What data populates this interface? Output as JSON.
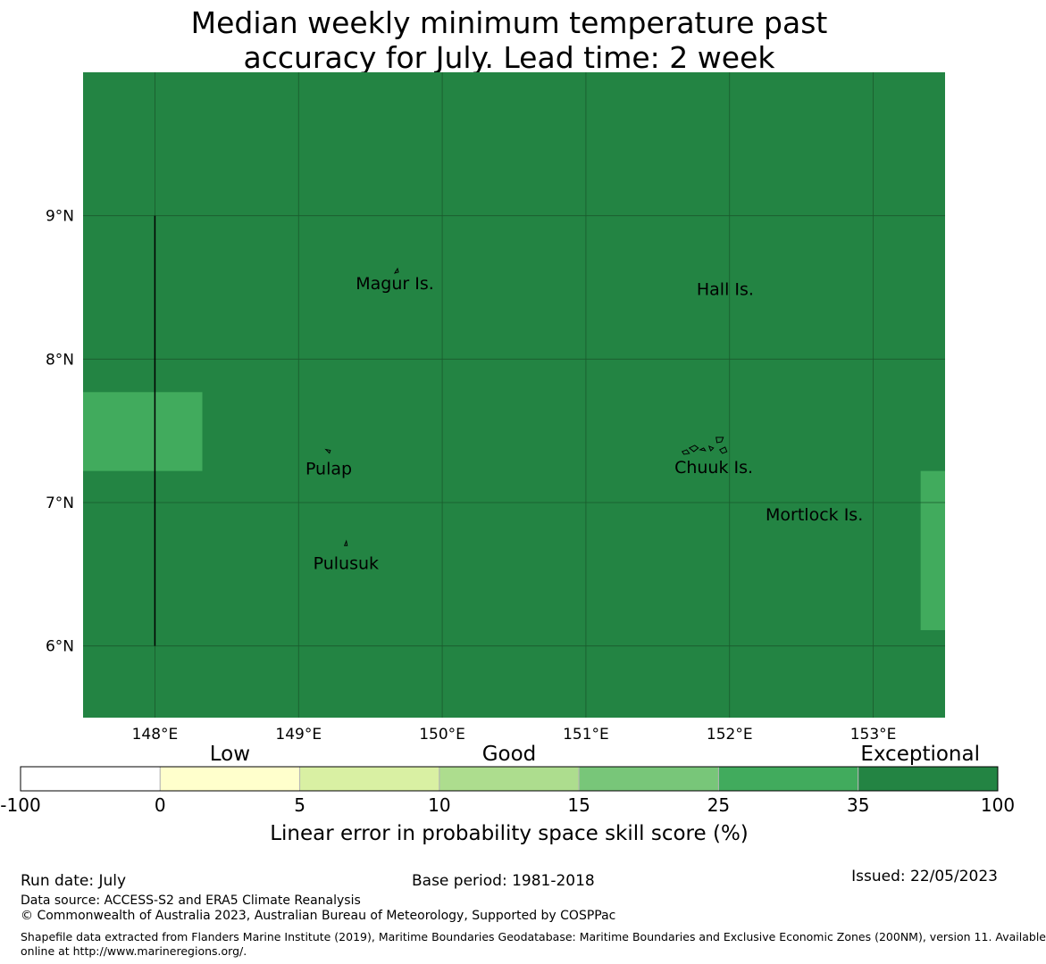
{
  "title_lines": [
    "Median weekly minimum temperature past",
    "accuracy for July. Lead time: 2 week"
  ],
  "map": {
    "lon_range": [
      147.5,
      153.5
    ],
    "lat_range": [
      5.5,
      10.0
    ],
    "lon_ticks": [
      {
        "value": 148,
        "label": "148°E"
      },
      {
        "value": 149,
        "label": "149°E"
      },
      {
        "value": 150,
        "label": "150°E"
      },
      {
        "value": 151,
        "label": "151°E"
      },
      {
        "value": 152,
        "label": "152°E"
      },
      {
        "value": 153,
        "label": "153°E"
      }
    ],
    "lat_ticks": [
      {
        "value": 9,
        "label": "9°N"
      },
      {
        "value": 8,
        "label": "8°N"
      },
      {
        "value": 7,
        "label": "7°N"
      },
      {
        "value": 6,
        "label": "6°N"
      }
    ],
    "background_category_color": "#238443",
    "grid_color": "#1a5a2c",
    "cells": [
      {
        "lon_min": 147.5,
        "lon_max": 148.33,
        "lat_min": 7.22,
        "lat_max": 7.77,
        "color": "#41ab5d"
      },
      {
        "lon_min": 153.33,
        "lon_max": 153.5,
        "lat_min": 6.11,
        "lat_max": 7.22,
        "color": "#41ab5d"
      }
    ],
    "boundary_line": {
      "lon": 148.0,
      "lat_min": 6.0,
      "lat_max": 9.0
    },
    "place_labels": [
      {
        "name": "Magur Is.",
        "lon": 149.67,
        "lat": 8.53
      },
      {
        "name": "Hall Is.",
        "lon": 151.97,
        "lat": 8.49
      },
      {
        "name": "Pulap",
        "lon": 149.21,
        "lat": 7.24
      },
      {
        "name": "Chuuk Is.",
        "lon": 151.89,
        "lat": 7.25
      },
      {
        "name": "Mortlock Is.",
        "lon": 152.59,
        "lat": 6.92
      },
      {
        "name": "Pulusuk",
        "lon": 149.33,
        "lat": 6.58
      }
    ]
  },
  "colorbar": {
    "bins": [
      {
        "color": "#ffffff"
      },
      {
        "color": "#ffffcc"
      },
      {
        "color": "#d9f0a3"
      },
      {
        "color": "#addd8e"
      },
      {
        "color": "#78c679"
      },
      {
        "color": "#41ab5d"
      },
      {
        "color": "#238443"
      }
    ],
    "tick_labels": [
      "-100",
      "0",
      "5",
      "10",
      "15",
      "25",
      "35",
      "100"
    ],
    "categories": [
      {
        "label": "Low",
        "bin": 1
      },
      {
        "label": "Good",
        "bin": 3
      },
      {
        "label": "Exceptional",
        "bin": 6
      }
    ],
    "label": "Linear error in probability space skill score (%)"
  },
  "footer": {
    "run_date": "Run date: July",
    "base_period": "Base period: 1981-2018",
    "issued": "Issued: 22/05/2023",
    "data_source": "Data source: ACCESS-S2 and ERA5 Climate Reanalysis",
    "copyright": "© Commonwealth of Australia 2023, Australian Bureau of Meteorology, Supported by COSPPac",
    "shapefile_line1": "Shapefile data extracted from Flanders Marine Institute (2019), Maritime Boundaries Geodatabase: Maritime Boundaries and Exclusive Economic Zones (200NM), version 11. Available",
    "shapefile_line2": "online at http://www.marineregions.org/."
  }
}
